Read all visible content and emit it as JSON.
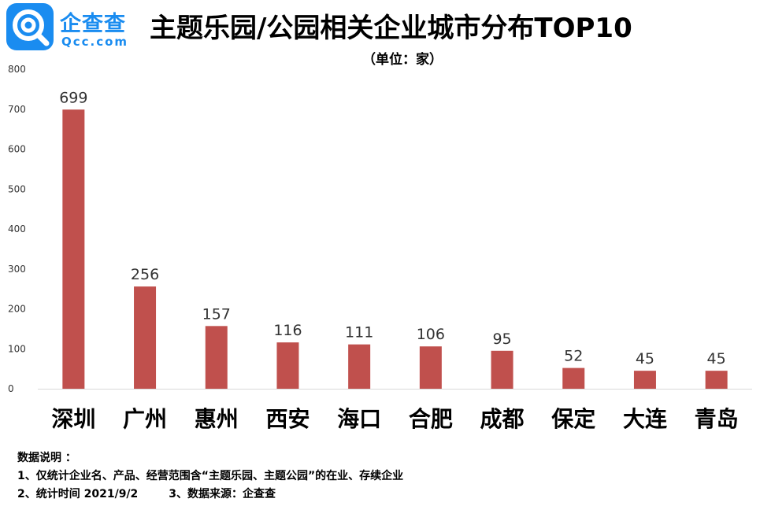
{
  "logo": {
    "name": "企查查",
    "domain": "Qcc.com",
    "color": "#1a8cf0"
  },
  "title": "主题乐园/公园相关企业城市分布TOP10",
  "unit": "（单位：家）",
  "chart_data": {
    "type": "bar",
    "categories": [
      "深圳",
      "广州",
      "惠州",
      "西安",
      "海口",
      "合肥",
      "成都",
      "保定",
      "大连",
      "青岛"
    ],
    "values": [
      699,
      256,
      157,
      116,
      111,
      106,
      95,
      52,
      45,
      45
    ],
    "ylim": [
      0,
      800
    ],
    "yticks": [
      "0",
      "100",
      "200",
      "300",
      "400",
      "500",
      "600",
      "700",
      "800"
    ],
    "bar_color": "#c0504d",
    "grid": false
  },
  "notes": {
    "heading": "数据说明 ：",
    "line1": "1、仅统计企业名、产品、经营范围含“主题乐园、主题公园”的在业、存续企业",
    "line2": "2、统计时间 2021/9/2        3、数据来源：企查查"
  }
}
